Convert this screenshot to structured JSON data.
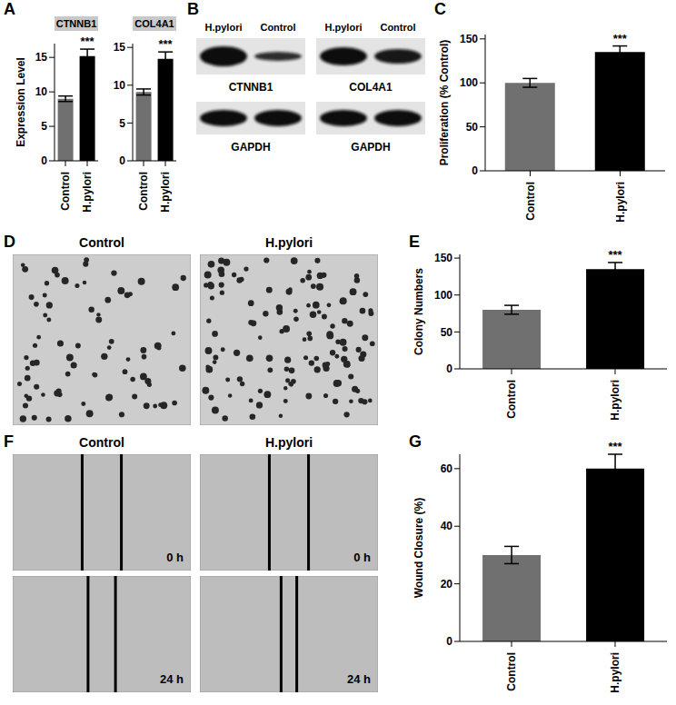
{
  "chart_data": [
    {
      "panel": "A",
      "type": "bar",
      "title": "CTNNB1",
      "y_label": "Expression Level",
      "categories": [
        "Control",
        "H.pylori"
      ],
      "values": [
        9.0,
        15.2
      ],
      "errors": [
        0.4,
        1.0
      ],
      "significance": [
        null,
        "***"
      ],
      "colors": [
        "#707070",
        "#000000"
      ],
      "ylim": [
        0,
        17
      ],
      "yticks": [
        0,
        5,
        10,
        15
      ]
    },
    {
      "type": "bar",
      "title": "COL4A1",
      "categories": [
        "Control",
        "H.pylori"
      ],
      "values": [
        9.1,
        13.5
      ],
      "errors": [
        0.4,
        0.9
      ],
      "significance": [
        null,
        "***"
      ],
      "colors": [
        "#707070",
        "#000000"
      ],
      "ylim": [
        0,
        15.5
      ],
      "yticks": [
        0,
        5,
        10,
        15
      ]
    },
    {
      "panel": "C",
      "type": "bar",
      "y_label": "Proliferation (% Control)",
      "categories": [
        "Control",
        "H.pylori"
      ],
      "values": [
        100,
        135
      ],
      "errors": [
        5,
        7
      ],
      "significance": [
        null,
        "***"
      ],
      "colors": [
        "#707070",
        "#000000"
      ],
      "ylim": [
        0,
        155
      ],
      "yticks": [
        0,
        50,
        100,
        150
      ]
    },
    {
      "panel": "E",
      "type": "bar",
      "y_label": "Colony Numbers",
      "categories": [
        "Control",
        "H.pylori"
      ],
      "values": [
        80,
        135
      ],
      "errors": [
        6,
        9
      ],
      "significance": [
        null,
        "***"
      ],
      "colors": [
        "#707070",
        "#000000"
      ],
      "ylim": [
        0,
        155
      ],
      "yticks": [
        0,
        50,
        100,
        150
      ]
    },
    {
      "panel": "G",
      "type": "bar",
      "y_label": "Wound Closure (%)",
      "categories": [
        "Control",
        "H.pylori"
      ],
      "values": [
        30,
        60
      ],
      "errors": [
        3,
        5
      ],
      "significance": [
        null,
        "***"
      ],
      "colors": [
        "#707070",
        "#000000"
      ],
      "ylim": [
        0,
        65
      ],
      "yticks": [
        0,
        20,
        40,
        60
      ]
    }
  ],
  "blot": {
    "panel": "B",
    "lanes": [
      "H.pylori",
      "Control"
    ],
    "groups": [
      {
        "target": "CTNNB1",
        "loading": "GAPDH"
      },
      {
        "target": "COL4A1",
        "loading": "GAPDH"
      }
    ]
  },
  "colony_images": {
    "panel": "D",
    "titles": [
      "Control",
      "H.pylori"
    ]
  },
  "wound_images": {
    "panel": "F",
    "titles": [
      "Control",
      "H.pylori"
    ],
    "times": [
      "0 h",
      "24 h"
    ]
  }
}
